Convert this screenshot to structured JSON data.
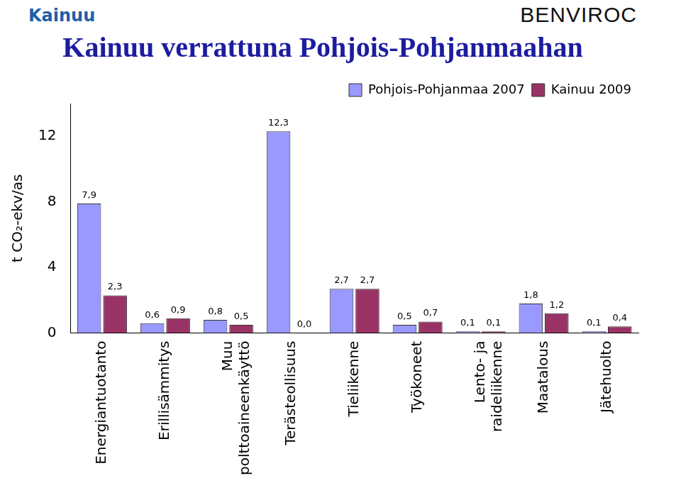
{
  "chart_data": {
    "type": "bar",
    "title": "Kainuu verrattuna Pohjois-Pohjanmaahan",
    "y_label": "t CO₂-ekv/as",
    "annotations": [
      "Kainuu",
      "BENVIROC"
    ],
    "categories": [
      "Energiantuotanto",
      "Erillisämmitys",
      "Muu polttoaineenkäyttö",
      "Terästeollisuus",
      "Tieliikenne",
      "Työkoneet",
      "Lento- ja raideliikenne",
      "Maatalous",
      "Jätehuolto"
    ],
    "series": [
      {
        "name": "Pohjois-Pohjanmaa 2007",
        "color": "#9999ff",
        "values": [
          7.9,
          0.6,
          0.8,
          12.3,
          2.7,
          0.5,
          0.1,
          1.8,
          0.1
        ],
        "value_labels": [
          "7,9",
          "0,6",
          "0,8",
          "12,3",
          "2,7",
          "0,5",
          "0,1",
          "1,8",
          "0,1"
        ]
      },
      {
        "name": "Kainuu 2009",
        "color": "#993366",
        "values": [
          2.3,
          0.9,
          0.5,
          0.0,
          2.7,
          0.7,
          0.1,
          1.2,
          0.4
        ],
        "value_labels": [
          "2,3",
          "0,9",
          "0,5",
          "0,0",
          "2,7",
          "0,7",
          "0,1",
          "1,2",
          "0,4"
        ]
      }
    ],
    "ylim": [
      0,
      14
    ],
    "yticks": [
      0,
      4,
      8,
      12
    ],
    "grid": false,
    "legend": "top-right",
    "data_labels": true
  }
}
